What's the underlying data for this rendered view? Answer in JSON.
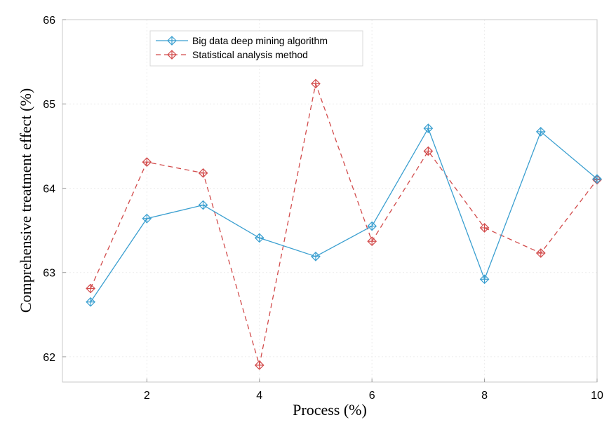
{
  "chart_data": {
    "type": "line",
    "xlabel": "Process (%)",
    "ylabel": "Comprehensive treatment effect (%)",
    "xlim": [
      0.5,
      10
    ],
    "ylim": [
      61.7,
      66
    ],
    "xticks": [
      2,
      4,
      6,
      8,
      10
    ],
    "yticks": [
      62,
      63,
      64,
      65,
      66
    ],
    "grid": true,
    "legend_position": "top-left",
    "x": [
      1,
      2,
      3,
      4,
      5,
      6,
      7,
      8,
      9,
      10
    ],
    "series": [
      {
        "name": "Big data deep mining algorithm",
        "values": [
          62.65,
          63.64,
          63.8,
          63.41,
          63.19,
          63.55,
          64.71,
          62.92,
          64.67,
          64.11
        ],
        "color": "#3a9fd0",
        "line_style": "solid",
        "marker": "diamond-cross"
      },
      {
        "name": "Statistical analysis method",
        "values": [
          62.81,
          64.31,
          64.18,
          61.9,
          65.24,
          63.37,
          64.44,
          63.53,
          63.23,
          64.1
        ],
        "color": "#d24b4b",
        "line_style": "dashed",
        "marker": "diamond-cross"
      }
    ]
  }
}
